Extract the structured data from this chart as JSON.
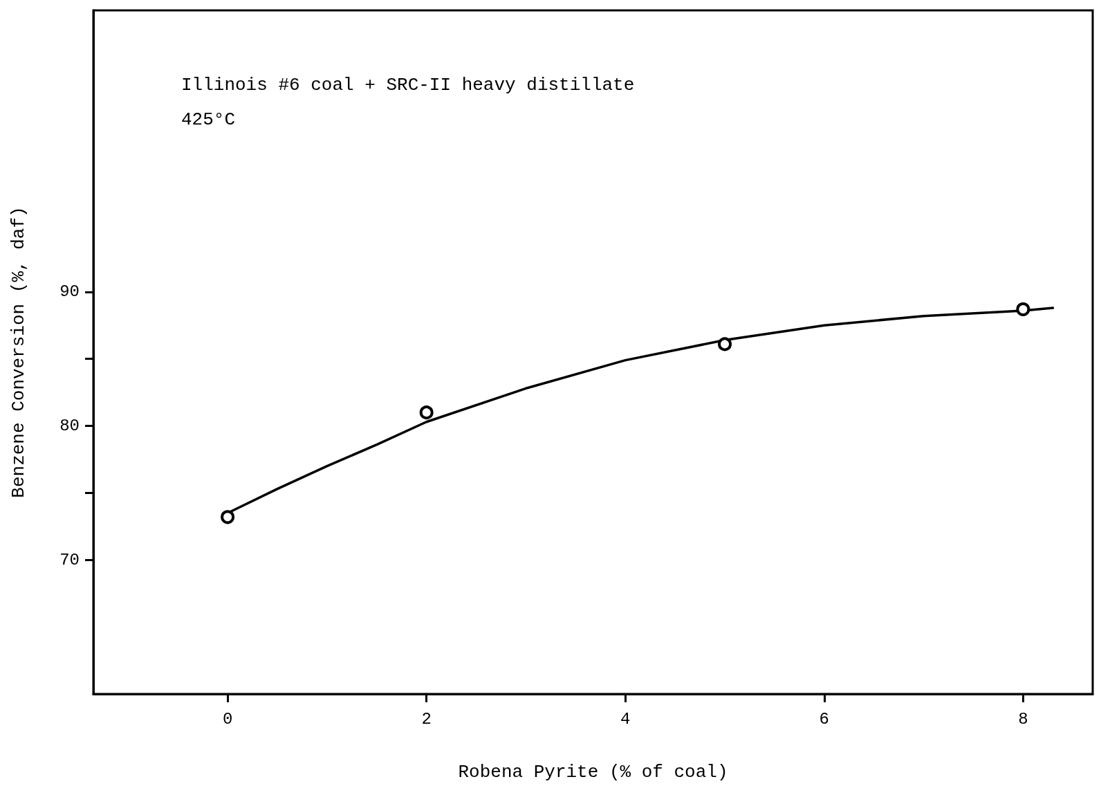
{
  "chart_data": {
    "type": "scatter",
    "xlabel": "Robena Pyrite (% of coal)",
    "ylabel": "Benzene Conversion (%, daf)",
    "annotations": [
      "Illinois #6 coal + SRC-II heavy distillate",
      "425°C"
    ],
    "xlim": [
      -1.35,
      8.7
    ],
    "xticks": [
      0,
      2,
      4,
      6,
      8
    ],
    "ylim": [
      60,
      111
    ],
    "yticks": [
      70,
      {
        "value": 75,
        "label": null
      },
      80,
      {
        "value": 85,
        "label": null
      },
      90
    ],
    "grid": false,
    "series": [
      {
        "marker": "circle",
        "color": "#000000",
        "x": [
          0,
          2,
          5,
          8
        ],
        "values": [
          73.2,
          81.0,
          86.1,
          88.7
        ]
      },
      {
        "type": "line",
        "marker": "none",
        "line_style": "solid",
        "color": "#000000",
        "x": [
          0,
          0.5,
          1,
          1.5,
          2,
          3,
          4,
          5,
          6,
          7,
          8,
          8.3
        ],
        "values": [
          73.5,
          75.3,
          77.0,
          78.6,
          80.3,
          82.8,
          84.9,
          86.4,
          87.5,
          88.2,
          88.6,
          88.8
        ]
      }
    ]
  }
}
